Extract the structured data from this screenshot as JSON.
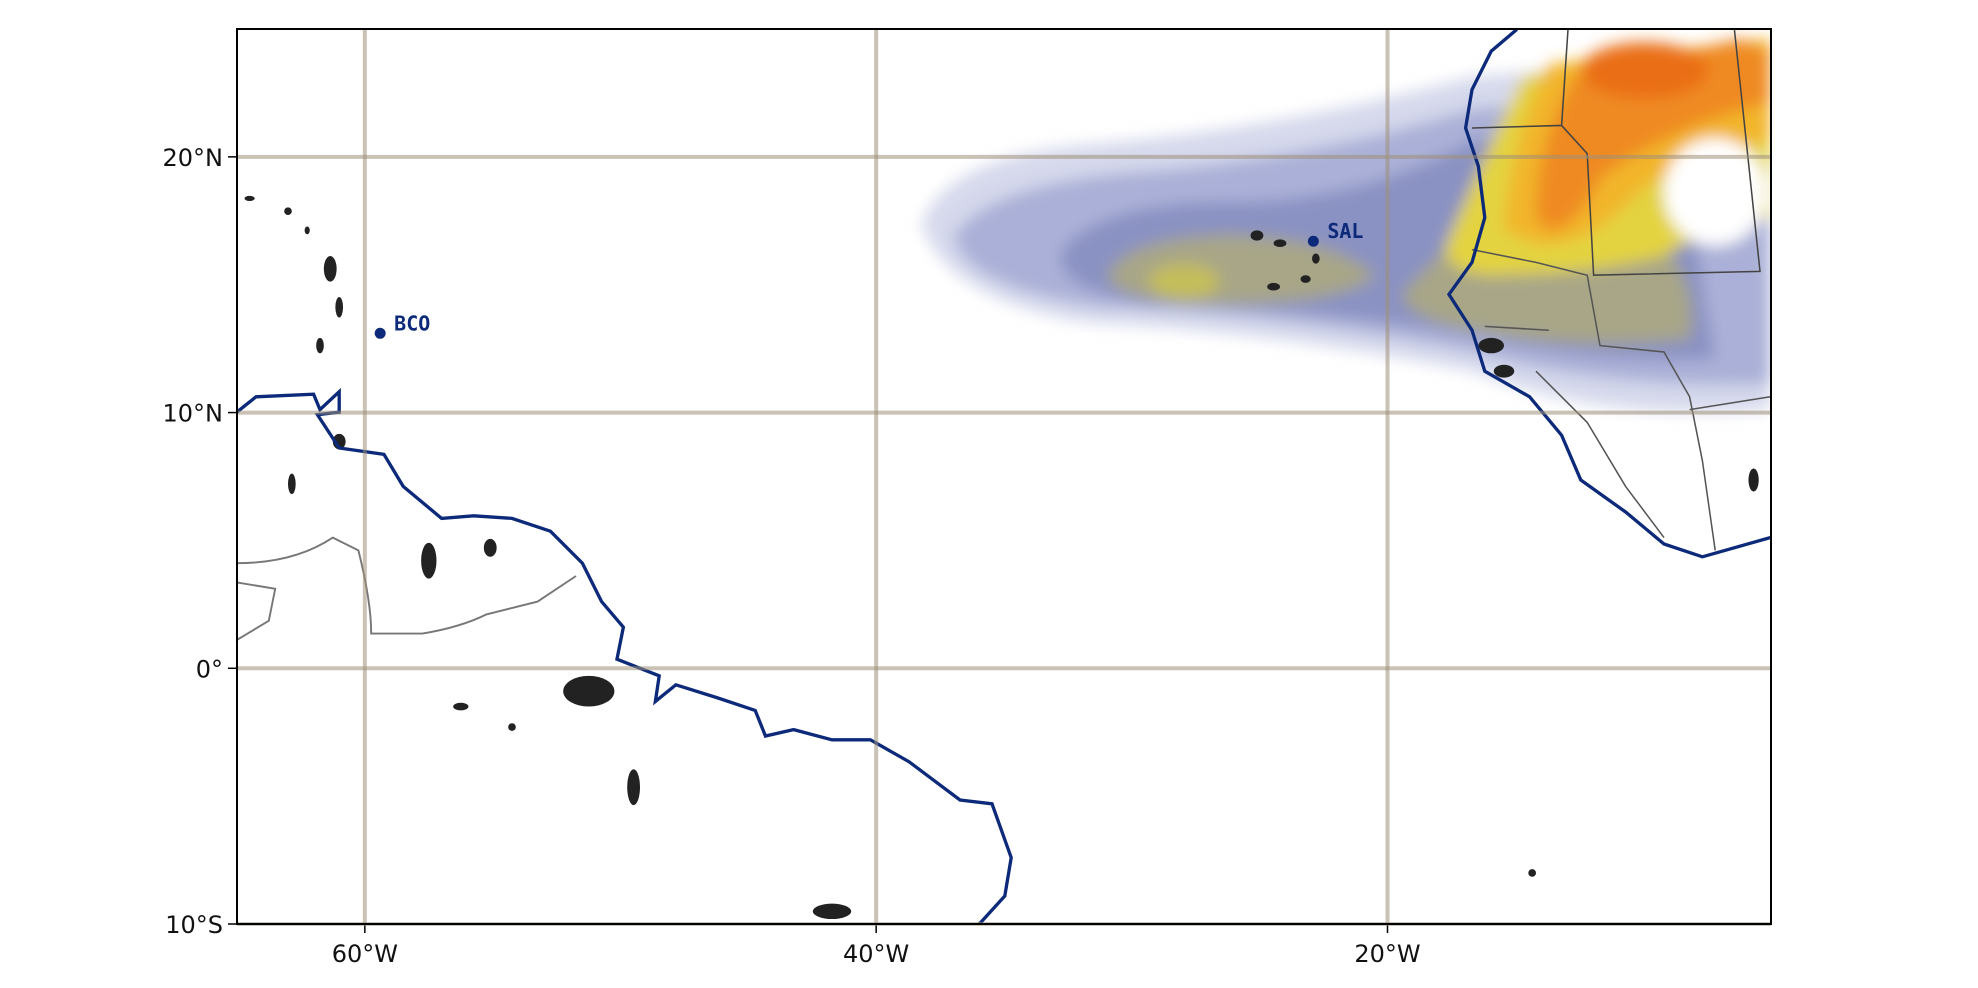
{
  "map": {
    "xlim": [
      -65,
      -5
    ],
    "ylim": [
      -10,
      25
    ],
    "xticks": [
      {
        "value": -60,
        "label": "60°W"
      },
      {
        "value": -40,
        "label": "40°W"
      },
      {
        "value": -20,
        "label": "20°W"
      }
    ],
    "yticks": [
      {
        "value": -10,
        "label": "10°S"
      },
      {
        "value": 0,
        "label": "0°"
      },
      {
        "value": 10,
        "label": "10°N"
      },
      {
        "value": 20,
        "label": "20°N"
      }
    ],
    "grid": true,
    "stations": [
      {
        "name": "BCO",
        "lon": -59.4,
        "lat": 13.1
      },
      {
        "name": "SAL",
        "lon": -22.9,
        "lat": 16.7
      }
    ]
  }
}
